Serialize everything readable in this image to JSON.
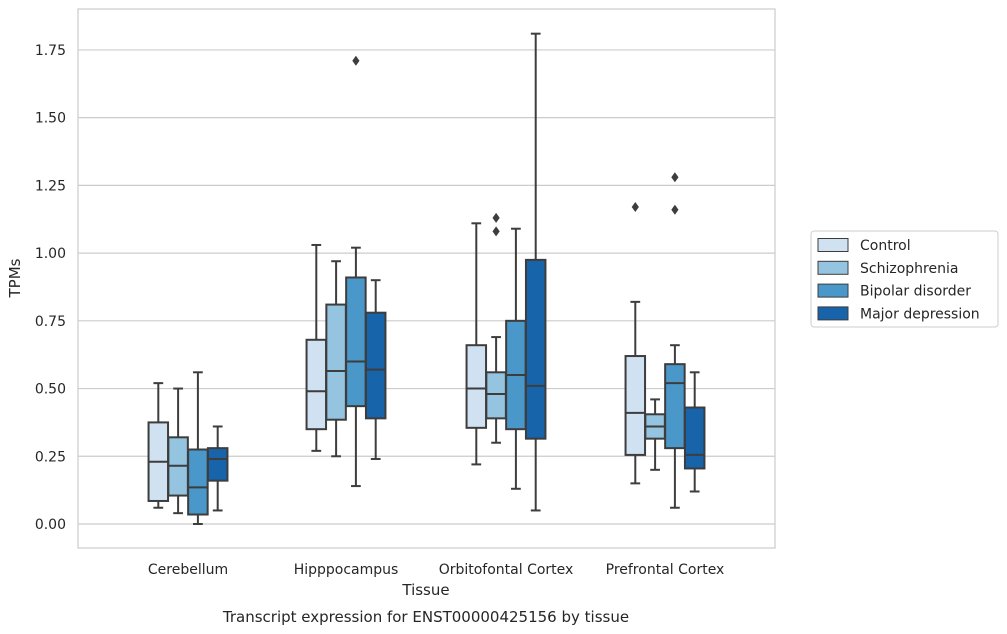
{
  "chart_data": {
    "type": "box",
    "xlabel": "Tissue",
    "ylabel": "TPMs",
    "caption": "Transcript expression for ENST00000425156 by tissue",
    "ylim": [
      -0.09,
      1.9
    ],
    "yticks": [
      "0.00",
      "0.25",
      "0.50",
      "0.75",
      "1.00",
      "1.25",
      "1.50",
      "1.75"
    ],
    "grid": true,
    "legend_position": "right",
    "categories": [
      "Cerebellum",
      "Hipppocampus",
      "Orbitofontal Cortex",
      "Prefrontal Cortex"
    ],
    "series": [
      {
        "name": "Control",
        "color": "#d0e1f2",
        "boxes": [
          {
            "whisker_low": 0.06,
            "q1": 0.085,
            "median": 0.23,
            "q3": 0.375,
            "whisker_high": 0.52,
            "outliers": []
          },
          {
            "whisker_low": 0.27,
            "q1": 0.35,
            "median": 0.49,
            "q3": 0.68,
            "whisker_high": 1.03,
            "outliers": []
          },
          {
            "whisker_low": 0.22,
            "q1": 0.355,
            "median": 0.5,
            "q3": 0.66,
            "whisker_high": 1.11,
            "outliers": []
          },
          {
            "whisker_low": 0.15,
            "q1": 0.255,
            "median": 0.41,
            "q3": 0.62,
            "whisker_high": 0.82,
            "outliers": [
              1.17
            ]
          }
        ]
      },
      {
        "name": "Schizophrenia",
        "color": "#94c4df",
        "boxes": [
          {
            "whisker_low": 0.04,
            "q1": 0.105,
            "median": 0.215,
            "q3": 0.32,
            "whisker_high": 0.5,
            "outliers": []
          },
          {
            "whisker_low": 0.25,
            "q1": 0.385,
            "median": 0.565,
            "q3": 0.81,
            "whisker_high": 0.97,
            "outliers": []
          },
          {
            "whisker_low": 0.3,
            "q1": 0.39,
            "median": 0.48,
            "q3": 0.56,
            "whisker_high": 0.69,
            "outliers": [
              1.08,
              1.13
            ]
          },
          {
            "whisker_low": 0.2,
            "q1": 0.315,
            "median": 0.36,
            "q3": 0.405,
            "whisker_high": 0.46,
            "outliers": []
          }
        ]
      },
      {
        "name": "Bipolar disorder",
        "color": "#4a98c9",
        "boxes": [
          {
            "whisker_low": 0.0,
            "q1": 0.035,
            "median": 0.135,
            "q3": 0.275,
            "whisker_high": 0.56,
            "outliers": []
          },
          {
            "whisker_low": 0.14,
            "q1": 0.435,
            "median": 0.6,
            "q3": 0.91,
            "whisker_high": 1.02,
            "outliers": [
              1.71
            ]
          },
          {
            "whisker_low": 0.13,
            "q1": 0.35,
            "median": 0.55,
            "q3": 0.75,
            "whisker_high": 1.09,
            "outliers": []
          },
          {
            "whisker_low": 0.06,
            "q1": 0.28,
            "median": 0.52,
            "q3": 0.59,
            "whisker_high": 0.66,
            "outliers": [
              1.16,
              1.28
            ]
          }
        ]
      },
      {
        "name": "Major depression",
        "color": "#1764ab",
        "boxes": [
          {
            "whisker_low": 0.05,
            "q1": 0.16,
            "median": 0.24,
            "q3": 0.28,
            "whisker_high": 0.36,
            "outliers": []
          },
          {
            "whisker_low": 0.24,
            "q1": 0.39,
            "median": 0.57,
            "q3": 0.78,
            "whisker_high": 0.9,
            "outliers": []
          },
          {
            "whisker_low": 0.05,
            "q1": 0.315,
            "median": 0.51,
            "q3": 0.975,
            "whisker_high": 1.81,
            "outliers": []
          },
          {
            "whisker_low": 0.12,
            "q1": 0.205,
            "median": 0.255,
            "q3": 0.43,
            "whisker_high": 0.56,
            "outliers": []
          }
        ]
      }
    ],
    "colors": {
      "grid": "#cccccc",
      "frame": "#cccccc",
      "box_edge": "#3d3d3d",
      "text": "#262626"
    }
  }
}
